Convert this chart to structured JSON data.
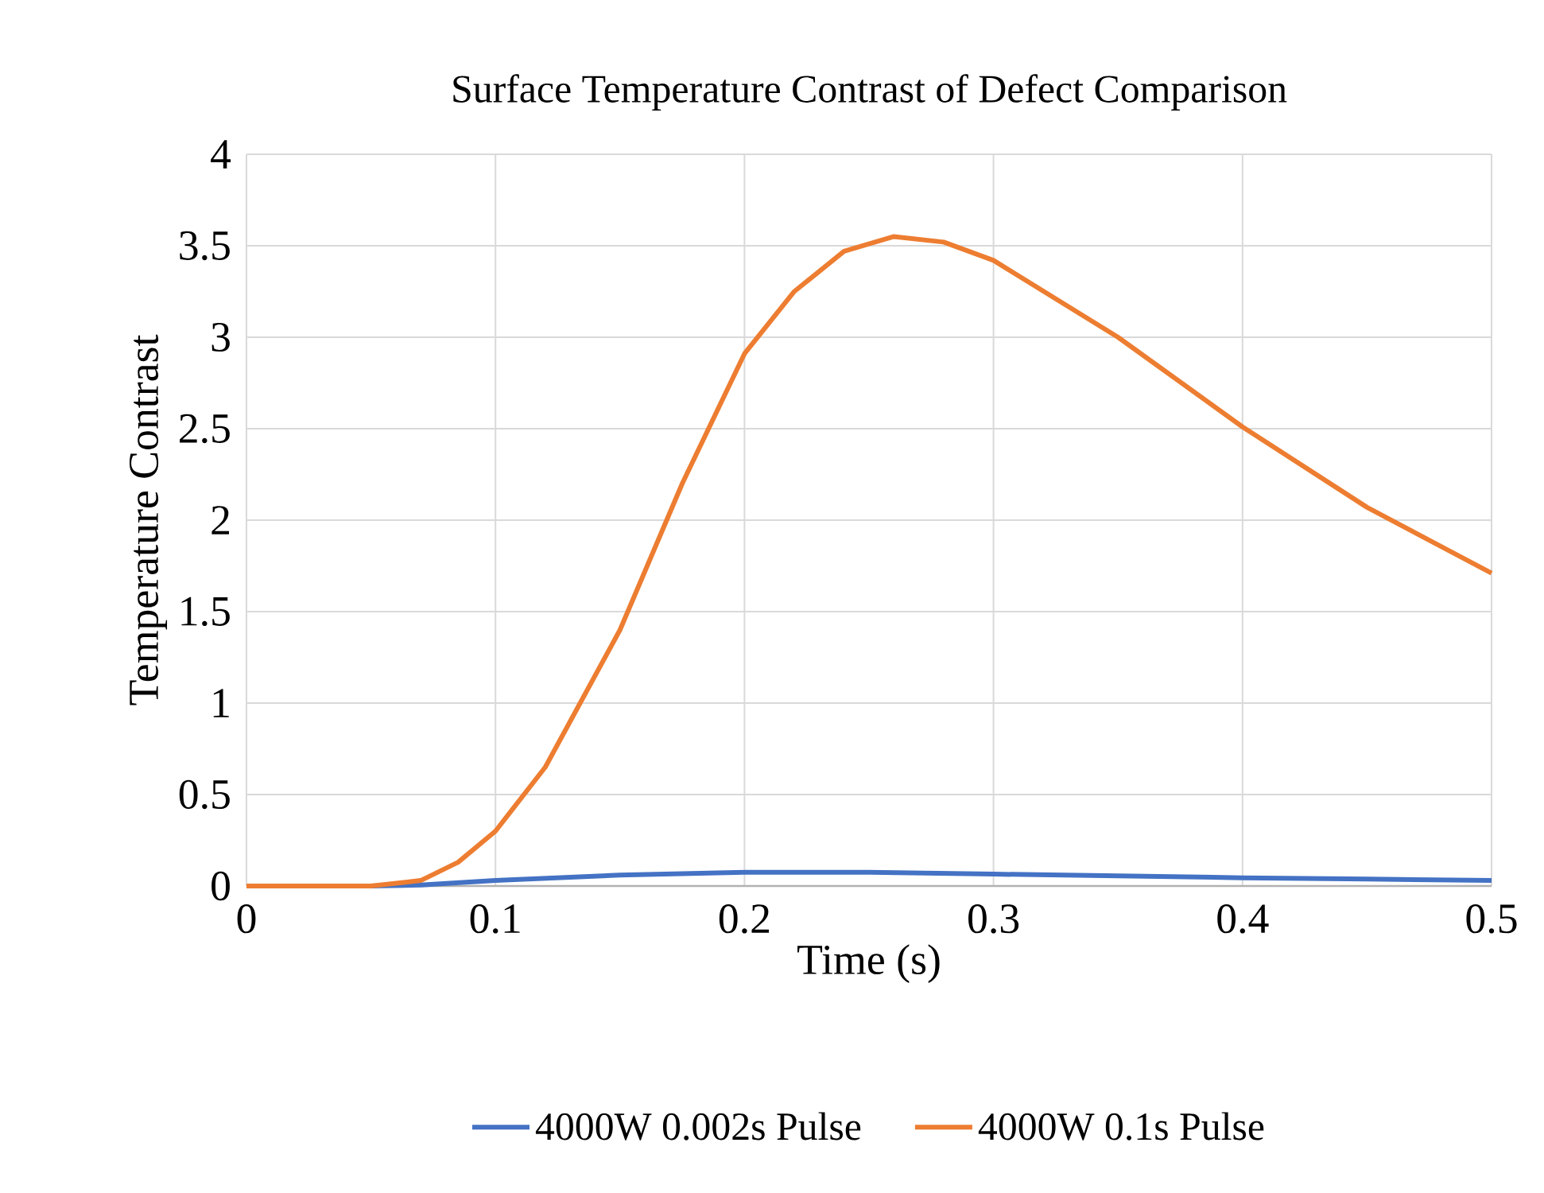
{
  "chart_data": {
    "type": "line",
    "title": "Surface Temperature Contrast of Defect Comparison",
    "xlabel": "Time (s)",
    "ylabel": "Temperature Contrast",
    "xlim": [
      0,
      0.5
    ],
    "ylim": [
      0,
      4
    ],
    "xticks": [
      0,
      0.1,
      0.2,
      0.3,
      0.4,
      0.5
    ],
    "yticks": [
      0,
      0.5,
      1,
      1.5,
      2,
      2.5,
      3,
      3.5,
      4
    ],
    "grid": true,
    "legend": "bottom",
    "marker": "none",
    "line_style": "solid",
    "series": [
      {
        "name": "4000W 0.002s Pulse",
        "color": "#4472c4",
        "x": [
          0,
          0.05,
          0.07,
          0.1,
          0.15,
          0.2,
          0.25,
          0.3,
          0.35,
          0.4,
          0.45,
          0.5
        ],
        "values": [
          0,
          0,
          0.005,
          0.03,
          0.06,
          0.075,
          0.075,
          0.065,
          0.055,
          0.045,
          0.038,
          0.03
        ]
      },
      {
        "name": "4000W 0.1s Pulse",
        "color": "#ed7d31",
        "x": [
          0,
          0.05,
          0.07,
          0.085,
          0.1,
          0.12,
          0.15,
          0.175,
          0.2,
          0.22,
          0.24,
          0.26,
          0.28,
          0.3,
          0.35,
          0.4,
          0.45,
          0.5
        ],
        "values": [
          0,
          0,
          0.03,
          0.13,
          0.3,
          0.65,
          1.4,
          2.2,
          2.91,
          3.25,
          3.47,
          3.55,
          3.52,
          3.42,
          3.0,
          2.51,
          2.07,
          1.71
        ]
      }
    ]
  }
}
